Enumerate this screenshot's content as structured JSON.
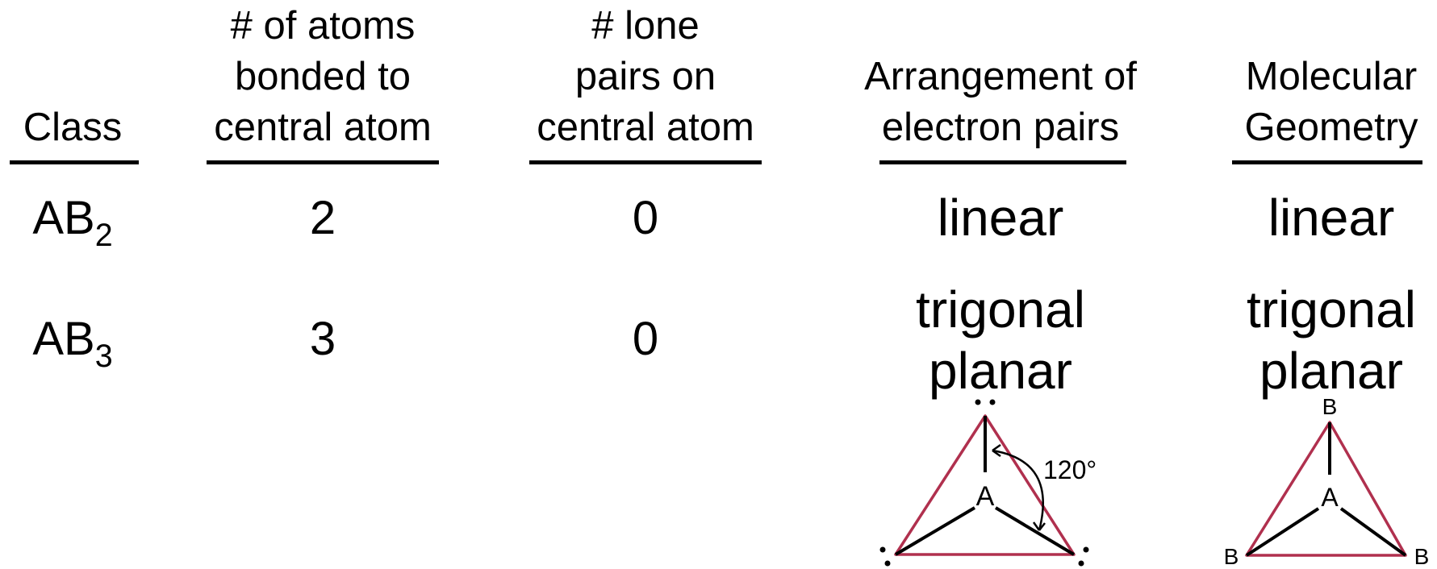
{
  "headers": {
    "class": "Class",
    "atoms_bonded": [
      "# of atoms",
      "bonded to",
      "central atom"
    ],
    "lone_pairs": [
      "# lone",
      "pairs on",
      "central atom"
    ],
    "electron_arrangement": [
      "Arrangement of",
      "electron pairs"
    ],
    "molecular_geometry": [
      "Molecular",
      "Geometry"
    ]
  },
  "rows": [
    {
      "class_base": "AB",
      "class_sub": "2",
      "atoms_bonded": "2",
      "lone_pairs": "0",
      "electron_arrangement": [
        "linear"
      ],
      "molecular_geometry": [
        "linear"
      ]
    },
    {
      "class_base": "AB",
      "class_sub": "3",
      "atoms_bonded": "3",
      "lone_pairs": "0",
      "electron_arrangement": [
        "trigonal",
        "planar"
      ],
      "molecular_geometry": [
        "trigonal",
        "planar"
      ]
    }
  ],
  "diagrams": {
    "electron_pairs": {
      "center_label": "A",
      "angle_label": "120°"
    },
    "molecular": {
      "center_label": "A",
      "outer_label": "B"
    }
  },
  "colors": {
    "triangle": "#b0304e",
    "bonds": "#000000"
  }
}
